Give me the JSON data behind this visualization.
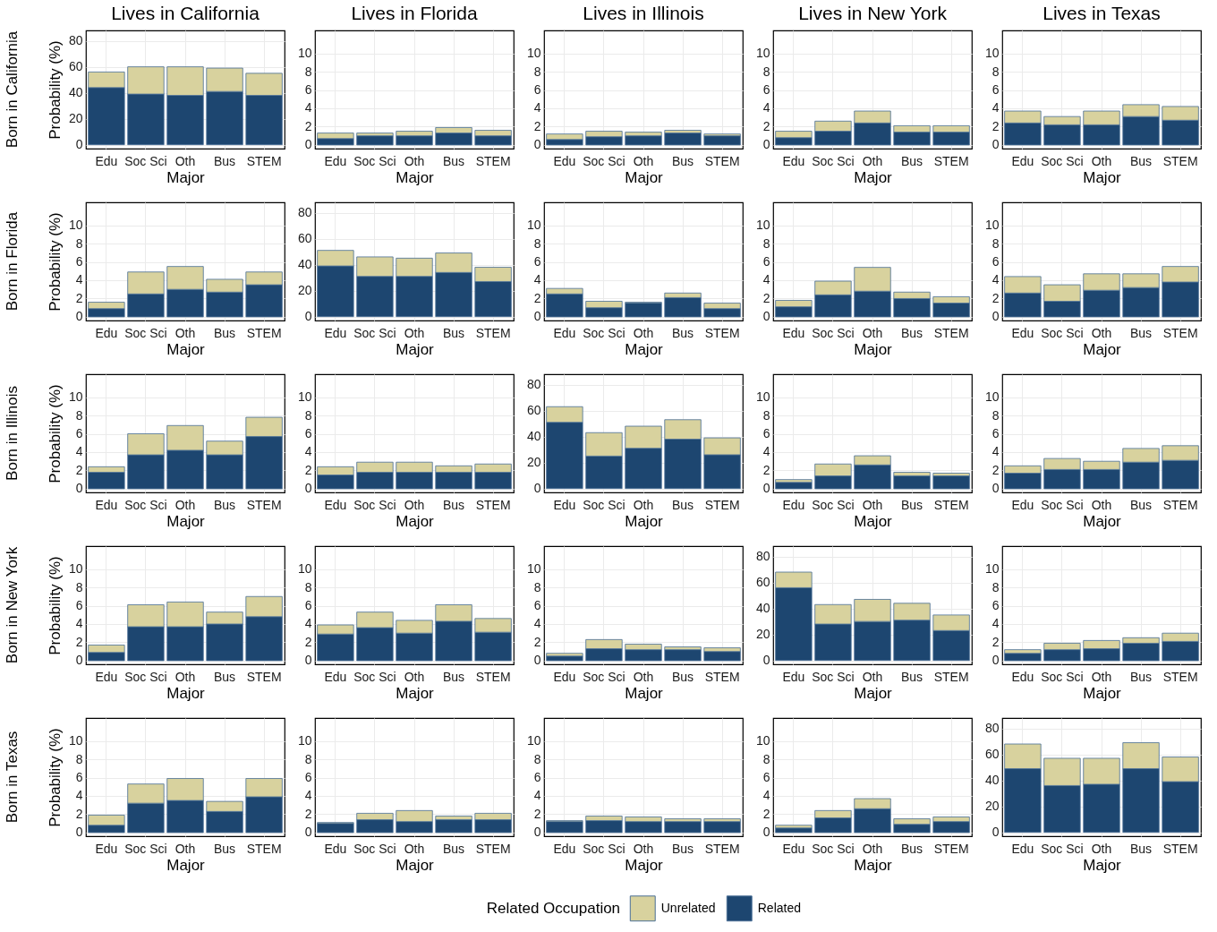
{
  "chart_data": [
    {
      "type": "bar",
      "stacked": true,
      "title": "Lives in California",
      "ylabel": "Probability (%)",
      "annotations": [
        "Born in California"
      ],
      "xlabel": "Major",
      "categories": [
        "Edu",
        "Soc Sci",
        "Oth",
        "Bus",
        "STEM"
      ],
      "series": [
        {
          "color": "#1d4670",
          "values": [
            44,
            39,
            38,
            41,
            38
          ]
        },
        {
          "color": "#d8d29e",
          "values": [
            12,
            21,
            22,
            18,
            17
          ]
        }
      ],
      "ylim": [
        -3,
        88
      ],
      "yticks": [
        0,
        20,
        40,
        60,
        80
      ],
      "grid": true
    },
    {
      "type": "bar",
      "stacked": true,
      "title": "Lives in Florida",
      "xlabel": "Major",
      "categories": [
        "Edu",
        "Soc Sci",
        "Oth",
        "Bus",
        "STEM"
      ],
      "series": [
        {
          "color": "#1d4670",
          "values": [
            0.7,
            1.0,
            1.0,
            1.3,
            1.0
          ]
        },
        {
          "color": "#d8d29e",
          "values": [
            0.6,
            0.3,
            0.5,
            0.6,
            0.6
          ]
        }
      ],
      "ylim": [
        -0.4,
        12.5
      ],
      "yticks": [
        0,
        2,
        4,
        6,
        8,
        10
      ],
      "grid": true
    },
    {
      "type": "bar",
      "stacked": true,
      "title": "Lives in Illinois",
      "xlabel": "Major",
      "categories": [
        "Edu",
        "Soc Sci",
        "Oth",
        "Bus",
        "STEM"
      ],
      "series": [
        {
          "color": "#1d4670",
          "values": [
            0.6,
            0.9,
            1.0,
            1.3,
            1.0
          ]
        },
        {
          "color": "#d8d29e",
          "values": [
            0.6,
            0.6,
            0.4,
            0.3,
            0.2
          ]
        }
      ],
      "ylim": [
        -0.4,
        12.5
      ],
      "yticks": [
        0,
        2,
        4,
        6,
        8,
        10
      ],
      "grid": true
    },
    {
      "type": "bar",
      "stacked": true,
      "title": "Lives in New York",
      "xlabel": "Major",
      "categories": [
        "Edu",
        "Soc Sci",
        "Oth",
        "Bus",
        "STEM"
      ],
      "series": [
        {
          "color": "#1d4670",
          "values": [
            0.8,
            1.5,
            2.4,
            1.4,
            1.4
          ]
        },
        {
          "color": "#d8d29e",
          "values": [
            0.7,
            1.1,
            1.3,
            0.7,
            0.7
          ]
        }
      ],
      "ylim": [
        -0.4,
        12.5
      ],
      "yticks": [
        0,
        2,
        4,
        6,
        8,
        10
      ],
      "grid": true
    },
    {
      "type": "bar",
      "stacked": true,
      "title": "Lives in Texas",
      "xlabel": "Major",
      "categories": [
        "Edu",
        "Soc Sci",
        "Oth",
        "Bus",
        "STEM"
      ],
      "series": [
        {
          "color": "#1d4670",
          "values": [
            2.4,
            2.2,
            2.2,
            3.1,
            2.7
          ]
        },
        {
          "color": "#d8d29e",
          "values": [
            1.3,
            0.9,
            1.5,
            1.3,
            1.5
          ]
        }
      ],
      "ylim": [
        -0.4,
        12.5
      ],
      "yticks": [
        0,
        2,
        4,
        6,
        8,
        10
      ],
      "grid": true
    },
    {
      "type": "bar",
      "stacked": true,
      "ylabel": "Probability (%)",
      "annotations": [
        "Born in Florida"
      ],
      "xlabel": "Major",
      "categories": [
        "Edu",
        "Soc Sci",
        "Oth",
        "Bus",
        "STEM"
      ],
      "series": [
        {
          "color": "#1d4670",
          "values": [
            0.9,
            2.5,
            3.0,
            2.7,
            3.5
          ]
        },
        {
          "color": "#d8d29e",
          "values": [
            0.7,
            2.4,
            2.5,
            1.4,
            1.4
          ]
        }
      ],
      "ylim": [
        -0.4,
        12.5
      ],
      "yticks": [
        0,
        2,
        4,
        6,
        8,
        10
      ],
      "grid": true
    },
    {
      "type": "bar",
      "stacked": true,
      "xlabel": "Major",
      "categories": [
        "Edu",
        "Soc Sci",
        "Oth",
        "Bus",
        "STEM"
      ],
      "series": [
        {
          "color": "#1d4670",
          "values": [
            39,
            31,
            31,
            34,
            27
          ]
        },
        {
          "color": "#d8d29e",
          "values": [
            12,
            15,
            14,
            15,
            11
          ]
        }
      ],
      "ylim": [
        -3,
        88
      ],
      "yticks": [
        0,
        20,
        40,
        60,
        80
      ],
      "grid": true
    },
    {
      "type": "bar",
      "stacked": true,
      "xlabel": "Major",
      "categories": [
        "Edu",
        "Soc Sci",
        "Oth",
        "Bus",
        "STEM"
      ],
      "series": [
        {
          "color": "#1d4670",
          "values": [
            2.5,
            1.0,
            1.5,
            2.1,
            0.9
          ]
        },
        {
          "color": "#d8d29e",
          "values": [
            0.6,
            0.7,
            0.1,
            0.5,
            0.6
          ]
        }
      ],
      "ylim": [
        -0.4,
        12.5
      ],
      "yticks": [
        0,
        2,
        4,
        6,
        8,
        10
      ],
      "grid": true
    },
    {
      "type": "bar",
      "stacked": true,
      "xlabel": "Major",
      "categories": [
        "Edu",
        "Soc Sci",
        "Oth",
        "Bus",
        "STEM"
      ],
      "series": [
        {
          "color": "#1d4670",
          "values": [
            1.1,
            2.4,
            2.8,
            2.0,
            1.5
          ]
        },
        {
          "color": "#d8d29e",
          "values": [
            0.7,
            1.5,
            2.6,
            0.7,
            0.7
          ]
        }
      ],
      "ylim": [
        -0.4,
        12.5
      ],
      "yticks": [
        0,
        2,
        4,
        6,
        8,
        10
      ],
      "grid": true
    },
    {
      "type": "bar",
      "stacked": true,
      "xlabel": "Major",
      "categories": [
        "Edu",
        "Soc Sci",
        "Oth",
        "Bus",
        "STEM"
      ],
      "series": [
        {
          "color": "#1d4670",
          "values": [
            2.6,
            1.7,
            2.9,
            3.2,
            3.8
          ]
        },
        {
          "color": "#d8d29e",
          "values": [
            1.8,
            1.8,
            1.8,
            1.5,
            1.7
          ]
        }
      ],
      "ylim": [
        -0.4,
        12.5
      ],
      "yticks": [
        0,
        2,
        4,
        6,
        8,
        10
      ],
      "grid": true
    },
    {
      "type": "bar",
      "stacked": true,
      "ylabel": "Probability (%)",
      "annotations": [
        "Born in Illinois"
      ],
      "xlabel": "Major",
      "categories": [
        "Edu",
        "Soc Sci",
        "Oth",
        "Bus",
        "STEM"
      ],
      "series": [
        {
          "color": "#1d4670",
          "values": [
            1.8,
            3.7,
            4.2,
            3.7,
            5.7
          ]
        },
        {
          "color": "#d8d29e",
          "values": [
            0.6,
            2.3,
            2.7,
            1.5,
            2.1
          ]
        }
      ],
      "ylim": [
        -0.4,
        12.5
      ],
      "yticks": [
        0,
        2,
        4,
        6,
        8,
        10
      ],
      "grid": true
    },
    {
      "type": "bar",
      "stacked": true,
      "xlabel": "Major",
      "categories": [
        "Edu",
        "Soc Sci",
        "Oth",
        "Bus",
        "STEM"
      ],
      "series": [
        {
          "color": "#1d4670",
          "values": [
            1.5,
            1.8,
            1.8,
            1.8,
            1.8
          ]
        },
        {
          "color": "#d8d29e",
          "values": [
            0.9,
            1.1,
            1.1,
            0.7,
            0.9
          ]
        }
      ],
      "ylim": [
        -0.4,
        12.5
      ],
      "yticks": [
        0,
        2,
        4,
        6,
        8,
        10
      ],
      "grid": true
    },
    {
      "type": "bar",
      "stacked": true,
      "xlabel": "Major",
      "categories": [
        "Edu",
        "Soc Sci",
        "Oth",
        "Bus",
        "STEM"
      ],
      "series": [
        {
          "color": "#1d4670",
          "values": [
            51,
            25,
            31,
            38,
            26
          ]
        },
        {
          "color": "#d8d29e",
          "values": [
            12,
            18,
            17,
            15,
            13
          ]
        }
      ],
      "ylim": [
        -3,
        88
      ],
      "yticks": [
        0,
        20,
        40,
        60,
        80
      ],
      "grid": true
    },
    {
      "type": "bar",
      "stacked": true,
      "xlabel": "Major",
      "categories": [
        "Edu",
        "Soc Sci",
        "Oth",
        "Bus",
        "STEM"
      ],
      "series": [
        {
          "color": "#1d4670",
          "values": [
            0.7,
            1.4,
            2.6,
            1.4,
            1.4
          ]
        },
        {
          "color": "#d8d29e",
          "values": [
            0.3,
            1.3,
            1.0,
            0.4,
            0.3
          ]
        }
      ],
      "ylim": [
        -0.4,
        12.5
      ],
      "yticks": [
        0,
        2,
        4,
        6,
        8,
        10
      ],
      "grid": true
    },
    {
      "type": "bar",
      "stacked": true,
      "xlabel": "Major",
      "categories": [
        "Edu",
        "Soc Sci",
        "Oth",
        "Bus",
        "STEM"
      ],
      "series": [
        {
          "color": "#1d4670",
          "values": [
            1.7,
            2.1,
            2.1,
            2.9,
            3.1
          ]
        },
        {
          "color": "#d8d29e",
          "values": [
            0.8,
            1.2,
            0.9,
            1.5,
            1.6
          ]
        }
      ],
      "ylim": [
        -0.4,
        12.5
      ],
      "yticks": [
        0,
        2,
        4,
        6,
        8,
        10
      ],
      "grid": true
    },
    {
      "type": "bar",
      "stacked": true,
      "ylabel": "Probability (%)",
      "annotations": [
        "Born in New York"
      ],
      "xlabel": "Major",
      "categories": [
        "Edu",
        "Soc Sci",
        "Oth",
        "Bus",
        "STEM"
      ],
      "series": [
        {
          "color": "#1d4670",
          "values": [
            0.9,
            3.7,
            3.7,
            4.0,
            4.8
          ]
        },
        {
          "color": "#d8d29e",
          "values": [
            0.8,
            2.4,
            2.7,
            1.3,
            2.2
          ]
        }
      ],
      "ylim": [
        -0.4,
        12.5
      ],
      "yticks": [
        0,
        2,
        4,
        6,
        8,
        10
      ],
      "grid": true
    },
    {
      "type": "bar",
      "stacked": true,
      "xlabel": "Major",
      "categories": [
        "Edu",
        "Soc Sci",
        "Oth",
        "Bus",
        "STEM"
      ],
      "series": [
        {
          "color": "#1d4670",
          "values": [
            2.9,
            3.6,
            3.0,
            4.3,
            3.1
          ]
        },
        {
          "color": "#d8d29e",
          "values": [
            1.0,
            1.7,
            1.4,
            1.8,
            1.5
          ]
        }
      ],
      "ylim": [
        -0.4,
        12.5
      ],
      "yticks": [
        0,
        2,
        4,
        6,
        8,
        10
      ],
      "grid": true
    },
    {
      "type": "bar",
      "stacked": true,
      "xlabel": "Major",
      "categories": [
        "Edu",
        "Soc Sci",
        "Oth",
        "Bus",
        "STEM"
      ],
      "series": [
        {
          "color": "#1d4670",
          "values": [
            0.5,
            1.3,
            1.2,
            1.2,
            1.0
          ]
        },
        {
          "color": "#d8d29e",
          "values": [
            0.3,
            1.0,
            0.6,
            0.3,
            0.4
          ]
        }
      ],
      "ylim": [
        -0.4,
        12.5
      ],
      "yticks": [
        0,
        2,
        4,
        6,
        8,
        10
      ],
      "grid": true
    },
    {
      "type": "bar",
      "stacked": true,
      "xlabel": "Major",
      "categories": [
        "Edu",
        "Soc Sci",
        "Oth",
        "Bus",
        "STEM"
      ],
      "series": [
        {
          "color": "#1d4670",
          "values": [
            56,
            28,
            30,
            31,
            23
          ]
        },
        {
          "color": "#d8d29e",
          "values": [
            12,
            15,
            17,
            13,
            12
          ]
        }
      ],
      "ylim": [
        -3,
        88
      ],
      "yticks": [
        0,
        20,
        40,
        60,
        80
      ],
      "grid": true
    },
    {
      "type": "bar",
      "stacked": true,
      "xlabel": "Major",
      "categories": [
        "Edu",
        "Soc Sci",
        "Oth",
        "Bus",
        "STEM"
      ],
      "series": [
        {
          "color": "#1d4670",
          "values": [
            0.8,
            1.2,
            1.3,
            1.9,
            2.1
          ]
        },
        {
          "color": "#d8d29e",
          "values": [
            0.4,
            0.7,
            0.9,
            0.6,
            0.9
          ]
        }
      ],
      "ylim": [
        -0.4,
        12.5
      ],
      "yticks": [
        0,
        2,
        4,
        6,
        8,
        10
      ],
      "grid": true
    },
    {
      "type": "bar",
      "stacked": true,
      "ylabel": "Probability (%)",
      "annotations": [
        "Born in Texas"
      ],
      "xlabel": "Major",
      "categories": [
        "Edu",
        "Soc Sci",
        "Oth",
        "Bus",
        "STEM"
      ],
      "series": [
        {
          "color": "#1d4670",
          "values": [
            0.8,
            3.2,
            3.5,
            2.3,
            3.9
          ]
        },
        {
          "color": "#d8d29e",
          "values": [
            1.1,
            2.1,
            2.4,
            1.1,
            2.0
          ]
        }
      ],
      "ylim": [
        -0.4,
        12.5
      ],
      "yticks": [
        0,
        2,
        4,
        6,
        8,
        10
      ],
      "grid": true
    },
    {
      "type": "bar",
      "stacked": true,
      "xlabel": "Major",
      "categories": [
        "Edu",
        "Soc Sci",
        "Oth",
        "Bus",
        "STEM"
      ],
      "series": [
        {
          "color": "#1d4670",
          "values": [
            1.0,
            1.4,
            1.2,
            1.4,
            1.4
          ]
        },
        {
          "color": "#d8d29e",
          "values": [
            0.1,
            0.7,
            1.2,
            0.4,
            0.7
          ]
        }
      ],
      "ylim": [
        -0.4,
        12.5
      ],
      "yticks": [
        0,
        2,
        4,
        6,
        8,
        10
      ],
      "grid": true
    },
    {
      "type": "bar",
      "stacked": true,
      "xlabel": "Major",
      "legend": "bottom",
      "legend_title": "Related Occupation",
      "categories": [
        "Edu",
        "Soc Sci",
        "Oth",
        "Bus",
        "STEM"
      ],
      "series": [
        {
          "name": "Related",
          "color": "#1d4670",
          "values": [
            1.2,
            1.3,
            1.2,
            1.2,
            1.2
          ]
        },
        {
          "name": "Unrelated",
          "color": "#d8d29e",
          "values": [
            0.1,
            0.5,
            0.5,
            0.3,
            0.3
          ]
        }
      ],
      "ylim": [
        -0.4,
        12.5
      ],
      "yticks": [
        0,
        2,
        4,
        6,
        8,
        10
      ],
      "grid": true
    },
    {
      "type": "bar",
      "stacked": true,
      "xlabel": "Major",
      "categories": [
        "Edu",
        "Soc Sci",
        "Oth",
        "Bus",
        "STEM"
      ],
      "series": [
        {
          "color": "#1d4670",
          "values": [
            0.5,
            1.6,
            2.6,
            0.9,
            1.2
          ]
        },
        {
          "color": "#d8d29e",
          "values": [
            0.3,
            0.8,
            1.1,
            0.6,
            0.5
          ]
        }
      ],
      "ylim": [
        -0.4,
        12.5
      ],
      "yticks": [
        0,
        2,
        4,
        6,
        8,
        10
      ],
      "grid": true
    },
    {
      "type": "bar",
      "stacked": true,
      "xlabel": "Major",
      "categories": [
        "Edu",
        "Soc Sci",
        "Oth",
        "Bus",
        "STEM"
      ],
      "series": [
        {
          "color": "#1d4670",
          "values": [
            49,
            36,
            37,
            49,
            39
          ]
        },
        {
          "color": "#d8d29e",
          "values": [
            19,
            21,
            20,
            20,
            19
          ]
        }
      ],
      "ylim": [
        -3,
        88
      ],
      "yticks": [
        0,
        20,
        40,
        60,
        80
      ],
      "grid": true
    }
  ]
}
